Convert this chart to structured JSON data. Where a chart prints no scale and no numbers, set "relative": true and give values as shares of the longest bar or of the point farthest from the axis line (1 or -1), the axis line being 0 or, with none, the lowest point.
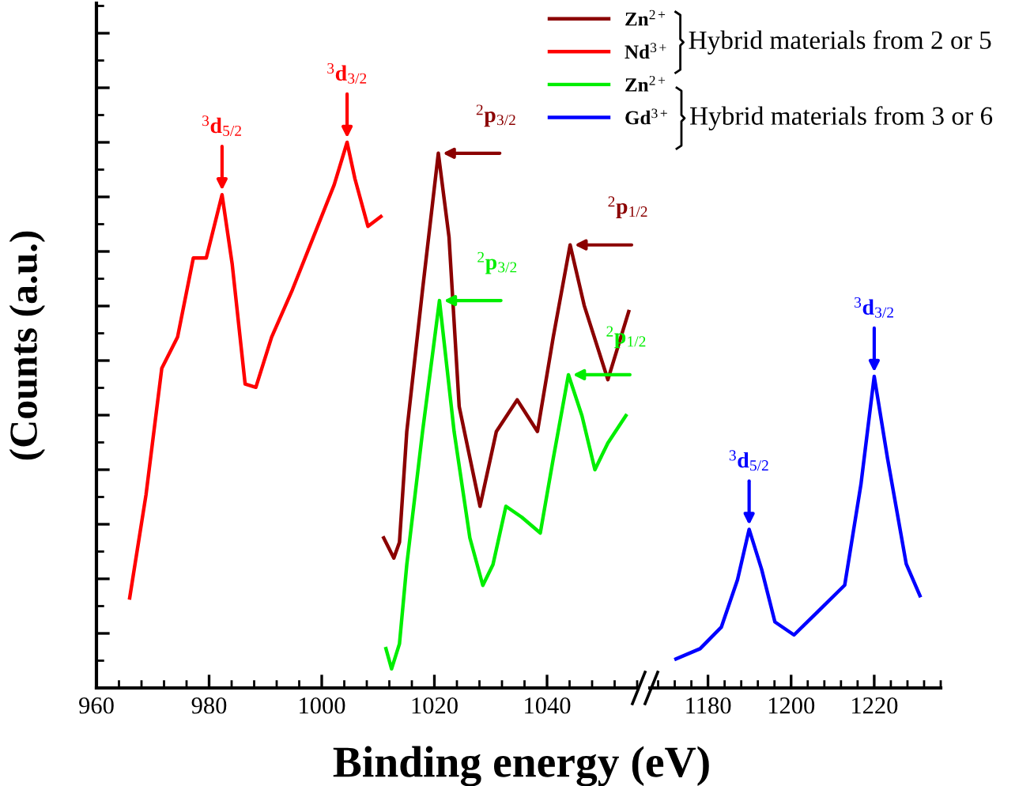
{
  "chart_data": [
    {
      "type": "line",
      "relative": true,
      "tick_labels": "x",
      "xlabel": "Binding energy (eV)",
      "ylabel": "(Counts (a.u.)",
      "xlim": [
        960,
        1056
      ],
      "xticks": [
        960,
        980,
        1000,
        1020,
        1040
      ],
      "legend": "top right",
      "annotations": [
        "Hybrid materials from 2 or 5",
        "Hybrid materials from 3 or 6",
        {
          "text": "$^{3}$d$_{5/2}$",
          "x": 982.3,
          "y": 0.904
        },
        {
          "text": "$^{3}$d$_{3/2}$",
          "x": 1004.5,
          "y": 1.0
        },
        {
          "text": "$^{2}$p$_{3/2}$",
          "x": 1020.7,
          "y": 0.98
        },
        {
          "text": "$^{2}$p$_{1/2}$",
          "x": 1044.1,
          "y": 0.812
        },
        {
          "text": "$^{2}$p$_{3/2}$",
          "x": 1020.9,
          "y": 0.71
        },
        {
          "text": "$^{2}$p$_{1/2}$",
          "x": 1043.8,
          "y": 0.574
        }
      ],
      "series": [
        {
          "name": "Zn$^{2+}$",
          "color": "#8b0000",
          "x": [
            1011,
            1012.8,
            1013.8,
            1015.1,
            1017.9,
            1020.7,
            1022.6,
            1024.4,
            1028.1,
            1031,
            1034.7,
            1038.3,
            1041.1,
            1044.1,
            1046.6,
            1050.8,
            1054.5
          ],
          "values": [
            0.275,
            0.238,
            0.267,
            0.47,
            0.73,
            0.98,
            0.826,
            0.516,
            0.333,
            0.47,
            0.528,
            0.47,
            0.643,
            0.812,
            0.701,
            0.565,
            0.69
          ]
        },
        {
          "name": "Nd$^{3+}$",
          "color": "#ff0000",
          "x": [
            965.9,
            968.8,
            971.6,
            974.4,
            977.2,
            979.5,
            982.3,
            984.1,
            986.4,
            988.3,
            991.1,
            994.8,
            998.5,
            1002.2,
            1004.5,
            1005.9,
            1008.2,
            1010.5
          ],
          "values": [
            0.165,
            0.354,
            0.586,
            0.643,
            0.788,
            0.788,
            0.904,
            0.777,
            0.557,
            0.551,
            0.643,
            0.73,
            0.826,
            0.922,
            1.0,
            0.933,
            0.846,
            0.864
          ]
        },
        {
          "name": "Zn$^{2+}$",
          "color": "#00ee00",
          "x": [
            1011.4,
            1012.4,
            1013.8,
            1015.1,
            1017.9,
            1020.9,
            1023.5,
            1026.3,
            1028.6,
            1030.4,
            1032.7,
            1035.5,
            1038.8,
            1041.1,
            1043.8,
            1046.2,
            1048.5,
            1050.8,
            1054
          ],
          "values": [
            0.072,
            0.035,
            0.081,
            0.226,
            0.47,
            0.71,
            0.47,
            0.275,
            0.188,
            0.226,
            0.333,
            0.313,
            0.284,
            0.42,
            0.574,
            0.499,
            0.4,
            0.449,
            0.499
          ]
        }
      ]
    },
    {
      "type": "line",
      "relative": true,
      "tick_labels": "x",
      "xlim": [
        1166,
        1236
      ],
      "xticks": [
        1180,
        1200,
        1220
      ],
      "annotations": [
        {
          "text": "$^{3}$d$_{5/2}$",
          "x": 1189.9,
          "y": 0.509
        },
        {
          "text": "$^{3}$d$_{3/2}$",
          "x": 1220,
          "y": 1.0
        }
      ],
      "series": [
        {
          "name": "Gd$^{3+}$",
          "color": "#0000ff",
          "x": [
            1172.3,
            1178.1,
            1183.2,
            1187.1,
            1189.9,
            1192.9,
            1196.1,
            1200.7,
            1206.5,
            1212.9,
            1216.8,
            1220,
            1223.2,
            1227.7,
            1231
          ],
          "values": [
            0.093,
            0.126,
            0.195,
            0.347,
            0.509,
            0.381,
            0.212,
            0.17,
            0.246,
            0.33,
            0.653,
            1.0,
            0.737,
            0.398,
            0.296
          ]
        }
      ]
    }
  ]
}
